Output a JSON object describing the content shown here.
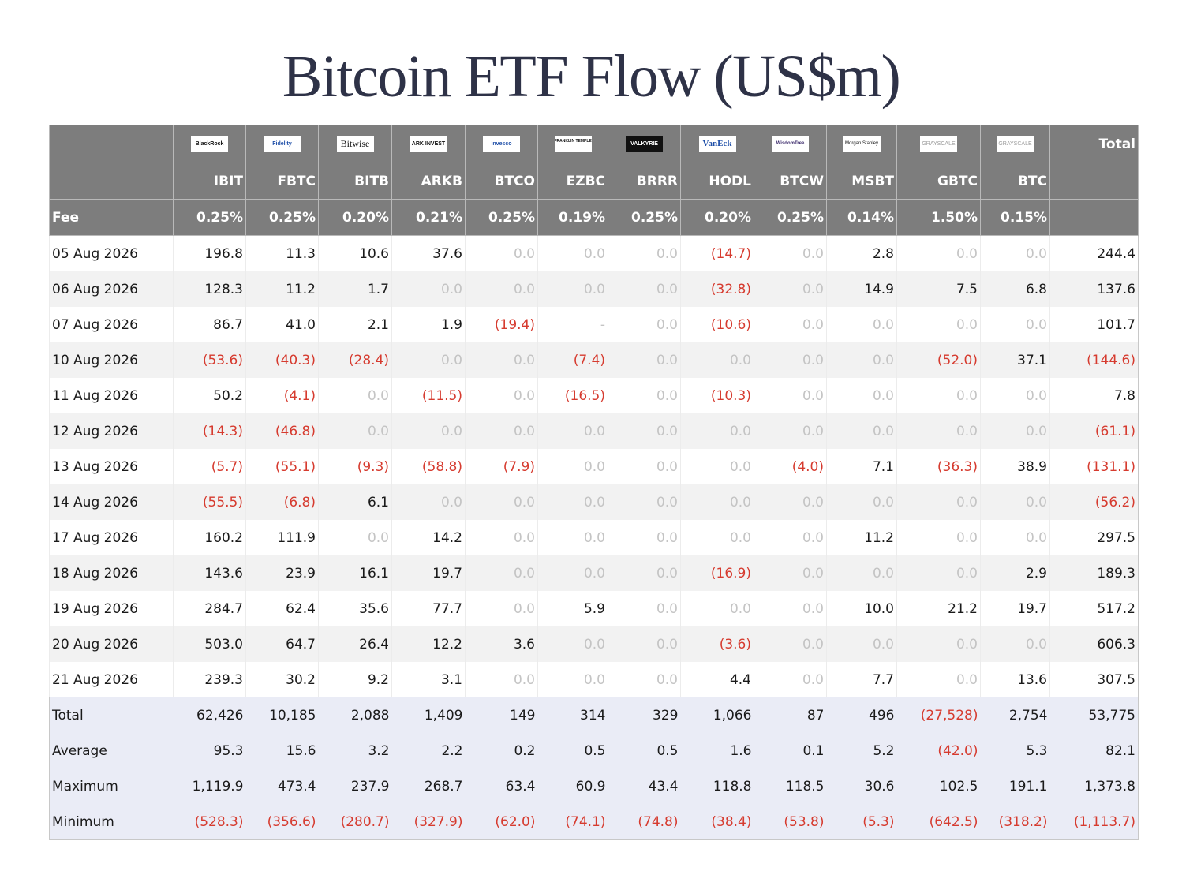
{
  "title": "Bitcoin ETF Flow (US$m)",
  "colors": {
    "header_bg": "#7d7d7d",
    "negative": "#d63b2f",
    "zero": "#c4c4c4",
    "summary_bg": "#eaecf6",
    "stripe": "#f2f2f2"
  },
  "header": {
    "total_label": "Total",
    "fee_label": "Fee",
    "issuers": [
      {
        "logo": "BlackRock",
        "ticker": "IBIT",
        "fee": "0.25%"
      },
      {
        "logo": "Fidelity",
        "ticker": "FBTC",
        "fee": "0.25%"
      },
      {
        "logo": "Bitwise",
        "ticker": "BITB",
        "fee": "0.20%"
      },
      {
        "logo": "ARK INVEST",
        "ticker": "ARKB",
        "fee": "0.21%"
      },
      {
        "logo": "Invesco",
        "ticker": "BTCO",
        "fee": "0.25%"
      },
      {
        "logo": "FRANKLIN TEMPLETON",
        "ticker": "EZBC",
        "fee": "0.19%"
      },
      {
        "logo": "VALKYRIE",
        "ticker": "BRRR",
        "fee": "0.25%"
      },
      {
        "logo": "VanEck",
        "ticker": "HODL",
        "fee": "0.20%"
      },
      {
        "logo": "WisdomTree",
        "ticker": "BTCW",
        "fee": "0.25%"
      },
      {
        "logo": "Morgan Stanley",
        "ticker": "MSBT",
        "fee": "0.14%"
      },
      {
        "logo": "GRAYSCALE",
        "ticker": "GBTC",
        "fee": "1.50%"
      },
      {
        "logo": "GRAYSCALE",
        "ticker": "BTC",
        "fee": "0.15%"
      }
    ]
  },
  "rows": [
    {
      "date": "05 Aug 2026",
      "values": [
        "196.8",
        "11.3",
        "10.6",
        "37.6",
        "0.0",
        "0.0",
        "0.0",
        "(14.7)",
        "0.0",
        "2.8",
        "0.0",
        "0.0"
      ],
      "total": "244.4"
    },
    {
      "date": "06 Aug 2026",
      "values": [
        "128.3",
        "11.2",
        "1.7",
        "0.0",
        "0.0",
        "0.0",
        "0.0",
        "(32.8)",
        "0.0",
        "14.9",
        "7.5",
        "6.8"
      ],
      "total": "137.6"
    },
    {
      "date": "07 Aug 2026",
      "values": [
        "86.7",
        "41.0",
        "2.1",
        "1.9",
        "(19.4)",
        "-",
        "0.0",
        "(10.6)",
        "0.0",
        "0.0",
        "0.0",
        "0.0"
      ],
      "total": "101.7"
    },
    {
      "date": "10 Aug 2026",
      "values": [
        "(53.6)",
        "(40.3)",
        "(28.4)",
        "0.0",
        "0.0",
        "(7.4)",
        "0.0",
        "0.0",
        "0.0",
        "0.0",
        "(52.0)",
        "37.1"
      ],
      "total": "(144.6)"
    },
    {
      "date": "11 Aug 2026",
      "values": [
        "50.2",
        "(4.1)",
        "0.0",
        "(11.5)",
        "0.0",
        "(16.5)",
        "0.0",
        "(10.3)",
        "0.0",
        "0.0",
        "0.0",
        "0.0"
      ],
      "total": "7.8"
    },
    {
      "date": "12 Aug 2026",
      "values": [
        "(14.3)",
        "(46.8)",
        "0.0",
        "0.0",
        "0.0",
        "0.0",
        "0.0",
        "0.0",
        "0.0",
        "0.0",
        "0.0",
        "0.0"
      ],
      "total": "(61.1)"
    },
    {
      "date": "13 Aug 2026",
      "values": [
        "(5.7)",
        "(55.1)",
        "(9.3)",
        "(58.8)",
        "(7.9)",
        "0.0",
        "0.0",
        "0.0",
        "(4.0)",
        "7.1",
        "(36.3)",
        "38.9"
      ],
      "total": "(131.1)"
    },
    {
      "date": "14 Aug 2026",
      "values": [
        "(55.5)",
        "(6.8)",
        "6.1",
        "0.0",
        "0.0",
        "0.0",
        "0.0",
        "0.0",
        "0.0",
        "0.0",
        "0.0",
        "0.0"
      ],
      "total": "(56.2)"
    },
    {
      "date": "17 Aug 2026",
      "values": [
        "160.2",
        "111.9",
        "0.0",
        "14.2",
        "0.0",
        "0.0",
        "0.0",
        "0.0",
        "0.0",
        "11.2",
        "0.0",
        "0.0"
      ],
      "total": "297.5"
    },
    {
      "date": "18 Aug 2026",
      "values": [
        "143.6",
        "23.9",
        "16.1",
        "19.7",
        "0.0",
        "0.0",
        "0.0",
        "(16.9)",
        "0.0",
        "0.0",
        "0.0",
        "2.9"
      ],
      "total": "189.3"
    },
    {
      "date": "19 Aug 2026",
      "values": [
        "284.7",
        "62.4",
        "35.6",
        "77.7",
        "0.0",
        "5.9",
        "0.0",
        "0.0",
        "0.0",
        "10.0",
        "21.2",
        "19.7"
      ],
      "total": "517.2"
    },
    {
      "date": "20 Aug 2026",
      "values": [
        "503.0",
        "64.7",
        "26.4",
        "12.2",
        "3.6",
        "0.0",
        "0.0",
        "(3.6)",
        "0.0",
        "0.0",
        "0.0",
        "0.0"
      ],
      "total": "606.3"
    },
    {
      "date": "21 Aug 2026",
      "values": [
        "239.3",
        "30.2",
        "9.2",
        "3.1",
        "0.0",
        "0.0",
        "0.0",
        "4.4",
        "0.0",
        "7.7",
        "0.0",
        "13.6"
      ],
      "total": "307.5"
    }
  ],
  "summary": [
    {
      "label": "Total",
      "values": [
        "62,426",
        "10,185",
        "2,088",
        "1,409",
        "149",
        "314",
        "329",
        "1,066",
        "87",
        "496",
        "(27,528)",
        "2,754"
      ],
      "total": "53,775"
    },
    {
      "label": "Average",
      "values": [
        "95.3",
        "15.6",
        "3.2",
        "2.2",
        "0.2",
        "0.5",
        "0.5",
        "1.6",
        "0.1",
        "5.2",
        "(42.0)",
        "5.3"
      ],
      "total": "82.1"
    },
    {
      "label": "Maximum",
      "values": [
        "1,119.9",
        "473.4",
        "237.9",
        "268.7",
        "63.4",
        "60.9",
        "43.4",
        "118.8",
        "118.5",
        "30.6",
        "102.5",
        "191.1"
      ],
      "total": "1,373.8"
    },
    {
      "label": "Minimum",
      "values": [
        "(528.3)",
        "(356.6)",
        "(280.7)",
        "(327.9)",
        "(62.0)",
        "(74.1)",
        "(74.8)",
        "(38.4)",
        "(53.8)",
        "(5.3)",
        "(642.5)",
        "(318.2)"
      ],
      "total": "(1,113.7)"
    }
  ]
}
